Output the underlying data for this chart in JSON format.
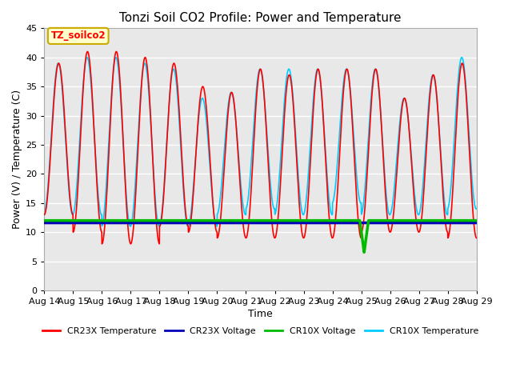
{
  "title": "Tonzi Soil CO2 Profile: Power and Temperature",
  "xlabel": "Time",
  "ylabel": "Power (V) / Temperature (C)",
  "ylim": [
    0,
    45
  ],
  "yticks": [
    0,
    5,
    10,
    15,
    20,
    25,
    30,
    35,
    40,
    45
  ],
  "x_tick_labels": [
    "Aug 14",
    "Aug 15",
    "Aug 16",
    "Aug 17",
    "Aug 18",
    "Aug 19",
    "Aug 20",
    "Aug 21",
    "Aug 22",
    "Aug 23",
    "Aug 24",
    "Aug 25",
    "Aug 26",
    "Aug 27",
    "Aug 28",
    "Aug 29"
  ],
  "cr23x_voltage_value": 11.6,
  "cr10x_voltage_value": 12.0,
  "annotation_text": "TZ_soilco2",
  "annotation_bg": "#ffffcc",
  "annotation_border": "#ccaa00",
  "fig_facecolor": "#ffffff",
  "plot_bg": "#e8e8e8",
  "grid_color": "#ffffff",
  "colors": {
    "cr23x_temp": "#ff0000",
    "cr23x_voltage": "#0000bb",
    "cr10x_voltage": "#00bb00",
    "cr10x_temp": "#00ccff"
  },
  "legend_labels": [
    "CR23X Temperature",
    "CR23X Voltage",
    "CR10X Voltage",
    "CR10X Temperature"
  ],
  "daily_peaks_cr23x": [
    39,
    41,
    41,
    40,
    39,
    35,
    34,
    38,
    37,
    38,
    38,
    38,
    33,
    37,
    39
  ],
  "daily_peaks_cr10x": [
    39,
    40,
    40,
    39,
    38,
    33,
    34,
    38,
    38,
    38,
    38,
    38,
    33,
    37,
    40
  ],
  "daily_mins_cr23x": [
    13,
    10,
    8,
    8,
    11,
    10,
    9,
    9,
    9,
    9,
    9,
    10,
    10,
    10,
    9
  ],
  "daily_mins_cr10x": [
    13,
    13,
    11,
    11,
    11,
    11,
    13,
    14,
    13,
    13,
    15,
    13,
    13,
    13,
    14
  ]
}
